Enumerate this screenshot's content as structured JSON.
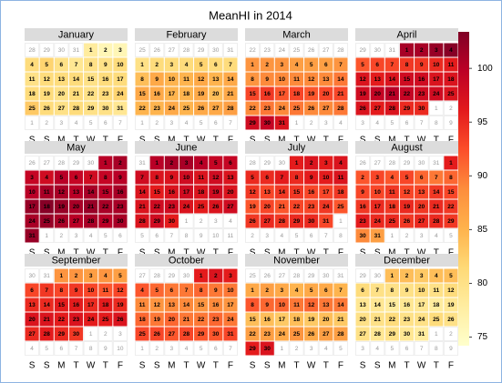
{
  "chart_data": {
    "type": "calendar",
    "title": "MeanHI in 2014",
    "weekdays": [
      "S",
      "S",
      "M",
      "T",
      "W",
      "T",
      "F"
    ],
    "zlim": [
      74.2,
      103.4
    ],
    "zticks": [
      75,
      80,
      85,
      90,
      95,
      100
    ],
    "colors": [
      "#ffffcc",
      "#ffeda0",
      "#fed976",
      "#feb24c",
      "#fd8d3c",
      "#fc4e2a",
      "#e31a1c",
      "#bd0026",
      "#800026"
    ],
    "months": [
      {
        "name": "January",
        "lead": [
          28,
          29,
          30,
          31
        ],
        "trail": [
          1,
          2,
          3,
          4,
          5,
          6,
          7
        ],
        "days": [
          1,
          2,
          3,
          4,
          5,
          6,
          7,
          8,
          9,
          10,
          11,
          12,
          13,
          14,
          15,
          16,
          17,
          18,
          19,
          20,
          21,
          22,
          23,
          24,
          25,
          26,
          27,
          28,
          29,
          30,
          31
        ],
        "values": [
          78,
          76,
          76,
          81,
          82,
          80,
          79,
          80,
          80,
          81,
          80,
          81,
          81,
          81,
          80,
          81,
          81,
          81,
          81,
          80,
          81,
          80,
          81,
          82,
          83,
          81,
          80,
          81,
          80,
          80,
          79
        ]
      },
      {
        "name": "February",
        "lead": [
          25,
          26,
          27,
          28,
          29,
          30,
          31
        ],
        "trail": [
          1,
          2,
          3,
          4,
          5,
          6,
          7
        ],
        "days": [
          1,
          2,
          3,
          4,
          5,
          6,
          7,
          8,
          9,
          10,
          11,
          12,
          13,
          14,
          15,
          16,
          17,
          18,
          19,
          20,
          21,
          22,
          23,
          24,
          25,
          26,
          27,
          28
        ],
        "values": [
          80,
          81,
          81,
          81,
          82,
          81,
          81,
          84,
          86,
          85,
          85,
          86,
          85,
          86,
          86,
          86,
          85,
          85,
          86,
          84,
          86,
          85,
          85,
          86,
          85,
          86,
          86,
          87
        ]
      },
      {
        "name": "March",
        "lead": [
          22,
          23,
          24,
          25,
          26,
          27,
          28
        ],
        "trail": [
          1,
          2,
          3,
          4
        ],
        "days": [
          1,
          2,
          3,
          4,
          5,
          6,
          7,
          8,
          9,
          10,
          11,
          12,
          13,
          14,
          15,
          16,
          17,
          18,
          19,
          20,
          21,
          22,
          23,
          24,
          25,
          26,
          27,
          28,
          29,
          30,
          31
        ],
        "values": [
          88,
          88,
          88,
          87,
          87,
          87,
          88,
          88,
          89,
          89,
          89,
          89,
          89,
          90,
          93,
          94,
          92,
          93,
          92,
          93,
          93,
          89,
          90,
          89,
          90,
          89,
          89,
          90,
          98,
          99,
          97
        ]
      },
      {
        "name": "April",
        "lead": [
          29,
          30,
          31
        ],
        "trail": [
          1,
          2,
          3,
          4,
          5,
          6,
          7,
          8,
          9
        ],
        "days": [
          1,
          2,
          3,
          4,
          5,
          6,
          7,
          8,
          9,
          10,
          11,
          12,
          13,
          14,
          15,
          16,
          17,
          18,
          19,
          20,
          21,
          22,
          23,
          24,
          25,
          26,
          27,
          28,
          29,
          30
        ],
        "values": [
          101,
          101,
          102,
          103,
          92,
          93,
          93,
          94,
          94,
          95,
          96,
          97,
          96,
          97,
          98,
          98,
          97,
          97,
          98,
          99,
          100,
          99,
          98,
          98,
          97,
          97,
          96,
          97,
          95,
          95
        ]
      },
      {
        "name": "May",
        "lead": [
          26,
          27,
          28,
          29,
          30
        ],
        "trail": [
          1,
          2,
          3,
          4,
          5,
          6
        ],
        "days": [
          1,
          2,
          3,
          4,
          5,
          6,
          7,
          8,
          9,
          10,
          11,
          12,
          13,
          14,
          15,
          16,
          17,
          18,
          19,
          20,
          21,
          22,
          23,
          24,
          25,
          26,
          27,
          28,
          29,
          30,
          31
        ],
        "values": [
          100,
          101,
          99,
          98,
          100,
          99,
          98,
          99,
          100,
          100,
          101,
          101,
          100,
          101,
          100,
          101,
          102,
          103,
          102,
          101,
          102,
          101,
          101,
          101,
          102,
          101,
          100,
          101,
          100,
          101,
          102
        ]
      },
      {
        "name": "June",
        "lead": [
          31
        ],
        "trail": [
          1,
          2,
          3,
          4,
          5,
          6,
          7,
          8,
          9,
          10,
          11
        ],
        "days": [
          1,
          2,
          3,
          4,
          5,
          6,
          7,
          8,
          9,
          10,
          11,
          12,
          13,
          14,
          15,
          16,
          17,
          18,
          19,
          20,
          21,
          22,
          23,
          24,
          25,
          26,
          27,
          28,
          29,
          30
        ],
        "values": [
          100,
          101,
          101,
          100,
          99,
          99,
          98,
          97,
          97,
          98,
          97,
          98,
          97,
          97,
          96,
          97,
          98,
          97,
          98,
          97,
          97,
          98,
          98,
          97,
          96,
          97,
          98,
          97,
          98,
          96
        ]
      },
      {
        "name": "July",
        "lead": [
          28,
          29,
          30
        ],
        "trail": [
          1,
          2,
          3,
          4,
          5,
          6,
          7,
          8
        ],
        "days": [
          1,
          2,
          3,
          4,
          5,
          6,
          7,
          8,
          9,
          10,
          11,
          12,
          13,
          14,
          15,
          16,
          17,
          18,
          19,
          20,
          21,
          22,
          23,
          24,
          25,
          26,
          27,
          28,
          29,
          30,
          31
        ],
        "values": [
          96,
          97,
          96,
          97,
          95,
          95,
          96,
          95,
          96,
          96,
          97,
          94,
          93,
          94,
          94,
          93,
          93,
          94,
          92,
          93,
          92,
          93,
          93,
          94,
          92,
          94,
          95,
          94,
          95,
          95,
          93
        ]
      },
      {
        "name": "August",
        "lead": [
          26,
          27,
          28,
          29,
          30,
          31
        ],
        "trail": [
          1,
          2,
          3,
          4,
          5
        ],
        "days": [
          1,
          2,
          3,
          4,
          5,
          6,
          7,
          8,
          9,
          10,
          11,
          12,
          13,
          14,
          15,
          16,
          17,
          18,
          19,
          20,
          21,
          22,
          23,
          24,
          25,
          26,
          27,
          28,
          29,
          30,
          31
        ],
        "values": [
          96,
          92,
          93,
          92,
          93,
          91,
          90,
          91,
          93,
          93,
          94,
          93,
          93,
          94,
          93,
          94,
          95,
          94,
          95,
          94,
          95,
          94,
          96,
          95,
          95,
          94,
          95,
          95,
          94,
          89,
          87
        ]
      },
      {
        "name": "September",
        "lead": [
          30,
          31
        ],
        "trail": [
          1,
          2,
          3,
          4,
          5,
          6,
          7,
          8,
          9,
          10
        ],
        "days": [
          1,
          2,
          3,
          4,
          5,
          6,
          7,
          8,
          9,
          10,
          11,
          12,
          13,
          14,
          15,
          16,
          17,
          18,
          19,
          20,
          21,
          22,
          23,
          24,
          25,
          26,
          27,
          28,
          29,
          30
        ],
        "values": [
          88,
          88,
          87,
          88,
          87,
          93,
          94,
          93,
          94,
          93,
          92,
          93,
          95,
          95,
          96,
          96,
          95,
          96,
          95,
          97,
          97,
          96,
          97,
          96,
          96,
          97,
          95,
          96,
          95,
          94
        ]
      },
      {
        "name": "October",
        "lead": [
          27,
          28,
          29,
          30
        ],
        "trail": [
          1,
          2,
          3,
          4,
          5,
          6,
          7
        ],
        "days": [
          1,
          2,
          3,
          4,
          5,
          6,
          7,
          8,
          9,
          10,
          11,
          12,
          13,
          14,
          15,
          16,
          17,
          18,
          19,
          20,
          21,
          22,
          23,
          24,
          25,
          26,
          27,
          28,
          29,
          30,
          31
        ],
        "values": [
          96,
          97,
          96,
          92,
          91,
          90,
          90,
          91,
          90,
          90,
          89,
          88,
          89,
          89,
          88,
          89,
          88,
          91,
          90,
          91,
          90,
          90,
          91,
          90,
          93,
          93,
          92,
          93,
          92,
          92,
          93
        ]
      },
      {
        "name": "November",
        "lead": [
          25,
          26,
          27,
          28,
          29,
          30,
          31
        ],
        "trail": [
          1,
          2,
          3,
          4,
          5
        ],
        "days": [
          1,
          2,
          3,
          4,
          5,
          6,
          7,
          8,
          9,
          10,
          11,
          12,
          13,
          14,
          15,
          16,
          17,
          18,
          19,
          20,
          21,
          22,
          23,
          24,
          25,
          26,
          27,
          28,
          29,
          30
        ],
        "values": [
          86,
          87,
          86,
          85,
          86,
          86,
          85,
          92,
          91,
          91,
          90,
          91,
          90,
          90,
          84,
          84,
          83,
          84,
          83,
          84,
          83,
          87,
          87,
          86,
          88,
          86,
          87,
          87,
          96,
          97
        ]
      },
      {
        "name": "December",
        "lead": [
          29,
          30
        ],
        "trail": [
          1,
          2,
          3,
          4,
          5,
          6,
          7,
          8,
          9
        ],
        "days": [
          1,
          2,
          3,
          4,
          5,
          6,
          7,
          8,
          9,
          10,
          11,
          12,
          13,
          14,
          15,
          16,
          17,
          18,
          19,
          20,
          21,
          22,
          23,
          24,
          25,
          26,
          27,
          28,
          29,
          30,
          31
        ],
        "values": [
          84,
          84,
          83,
          84,
          84,
          81,
          80,
          80,
          80,
          81,
          80,
          81,
          79,
          79,
          78,
          79,
          79,
          78,
          79,
          80,
          80,
          81,
          80,
          80,
          81,
          80,
          80,
          79,
          80,
          79,
          78
        ]
      }
    ]
  }
}
